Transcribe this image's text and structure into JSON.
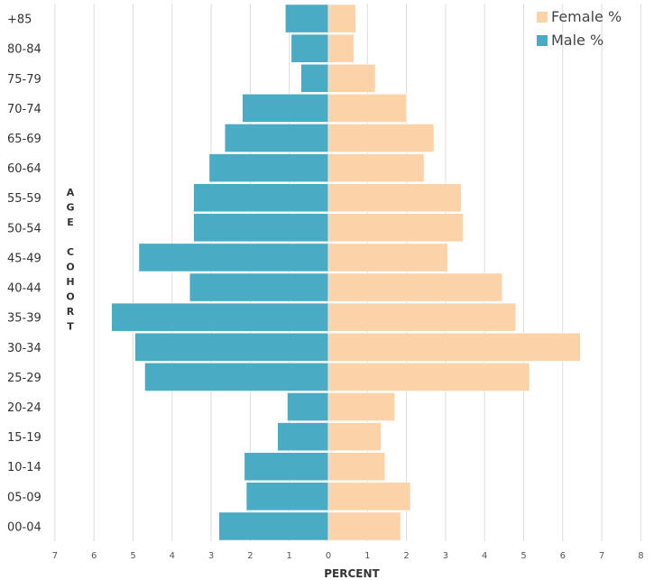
{
  "chart_data": {
    "type": "bar",
    "orientation": "horizontal",
    "layout": "population-pyramid",
    "categories": [
      "00-04",
      "05-09",
      "10-14",
      "15-19",
      "20-24",
      "25-29",
      "30-34",
      "35-39",
      "40-44",
      "45-49",
      "50-54",
      "55-59",
      "60-64",
      "65-69",
      "70-74",
      "75-79",
      "80-84",
      "+85"
    ],
    "series": [
      {
        "name": "Male %",
        "color": "#4aabc4",
        "side": "left",
        "values": [
          2.8,
          2.1,
          2.15,
          1.3,
          1.05,
          4.7,
          4.95,
          5.55,
          3.55,
          4.85,
          3.45,
          3.45,
          3.05,
          2.65,
          2.2,
          0.7,
          0.95,
          1.1
        ]
      },
      {
        "name": "Female %",
        "color": "#fcd2a9",
        "side": "right",
        "values": [
          1.85,
          2.1,
          1.45,
          1.35,
          1.7,
          5.15,
          6.45,
          4.8,
          4.45,
          3.05,
          3.45,
          3.4,
          2.45,
          2.7,
          2.0,
          1.2,
          0.65,
          0.7
        ]
      }
    ],
    "xlabel": "PERCENT",
    "ylabel": "AGE COHORT",
    "x_ticks": [
      "7",
      "6",
      "5",
      "4",
      "3",
      "2",
      "1",
      "0",
      "1",
      "2",
      "3",
      "4",
      "5",
      "6",
      "7",
      "8"
    ],
    "xlim": [
      -7,
      8
    ],
    "grid": "vertical",
    "legend_position": "top-right"
  }
}
